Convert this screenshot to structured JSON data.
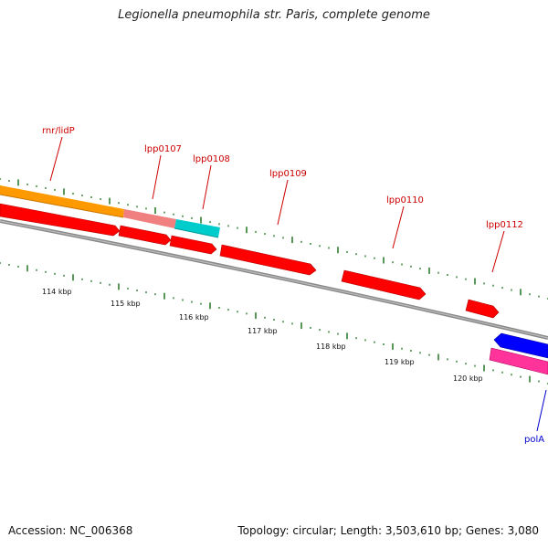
{
  "title": "Legionella pneumophila str. Paris, complete genome",
  "footer": {
    "accession": "Accession: NC_006368",
    "summary": "Topology: circular; Length: 3,503,610 bp; Genes: 3,080"
  },
  "ruler_labels": [
    "114 kbp",
    "115 kbp",
    "116 kbp",
    "117 kbp",
    "118 kbp",
    "119 kbp",
    "120 kbp"
  ],
  "gene_labels": [
    {
      "text": "rnr/lidP",
      "strand": "forward"
    },
    {
      "text": "lpp0107",
      "strand": "forward"
    },
    {
      "text": "lpp0108",
      "strand": "forward"
    },
    {
      "text": "lpp0109",
      "strand": "forward"
    },
    {
      "text": "lpp0110",
      "strand": "forward"
    },
    {
      "text": "lpp0112",
      "strand": "forward"
    },
    {
      "text": "polA",
      "strand": "reverse"
    }
  ],
  "colors": {
    "cds": "#ff0000",
    "orange_feature": "#ff9900",
    "pink_feature": "#f08080",
    "cyan_feature": "#00cccc",
    "blue_feature": "#0000ff",
    "magenta_feature": "#ff3399",
    "tick": "#2e7d2e",
    "backbone": "#888888",
    "forward_label": "#cc0000",
    "reverse_label": "#0000cc"
  }
}
